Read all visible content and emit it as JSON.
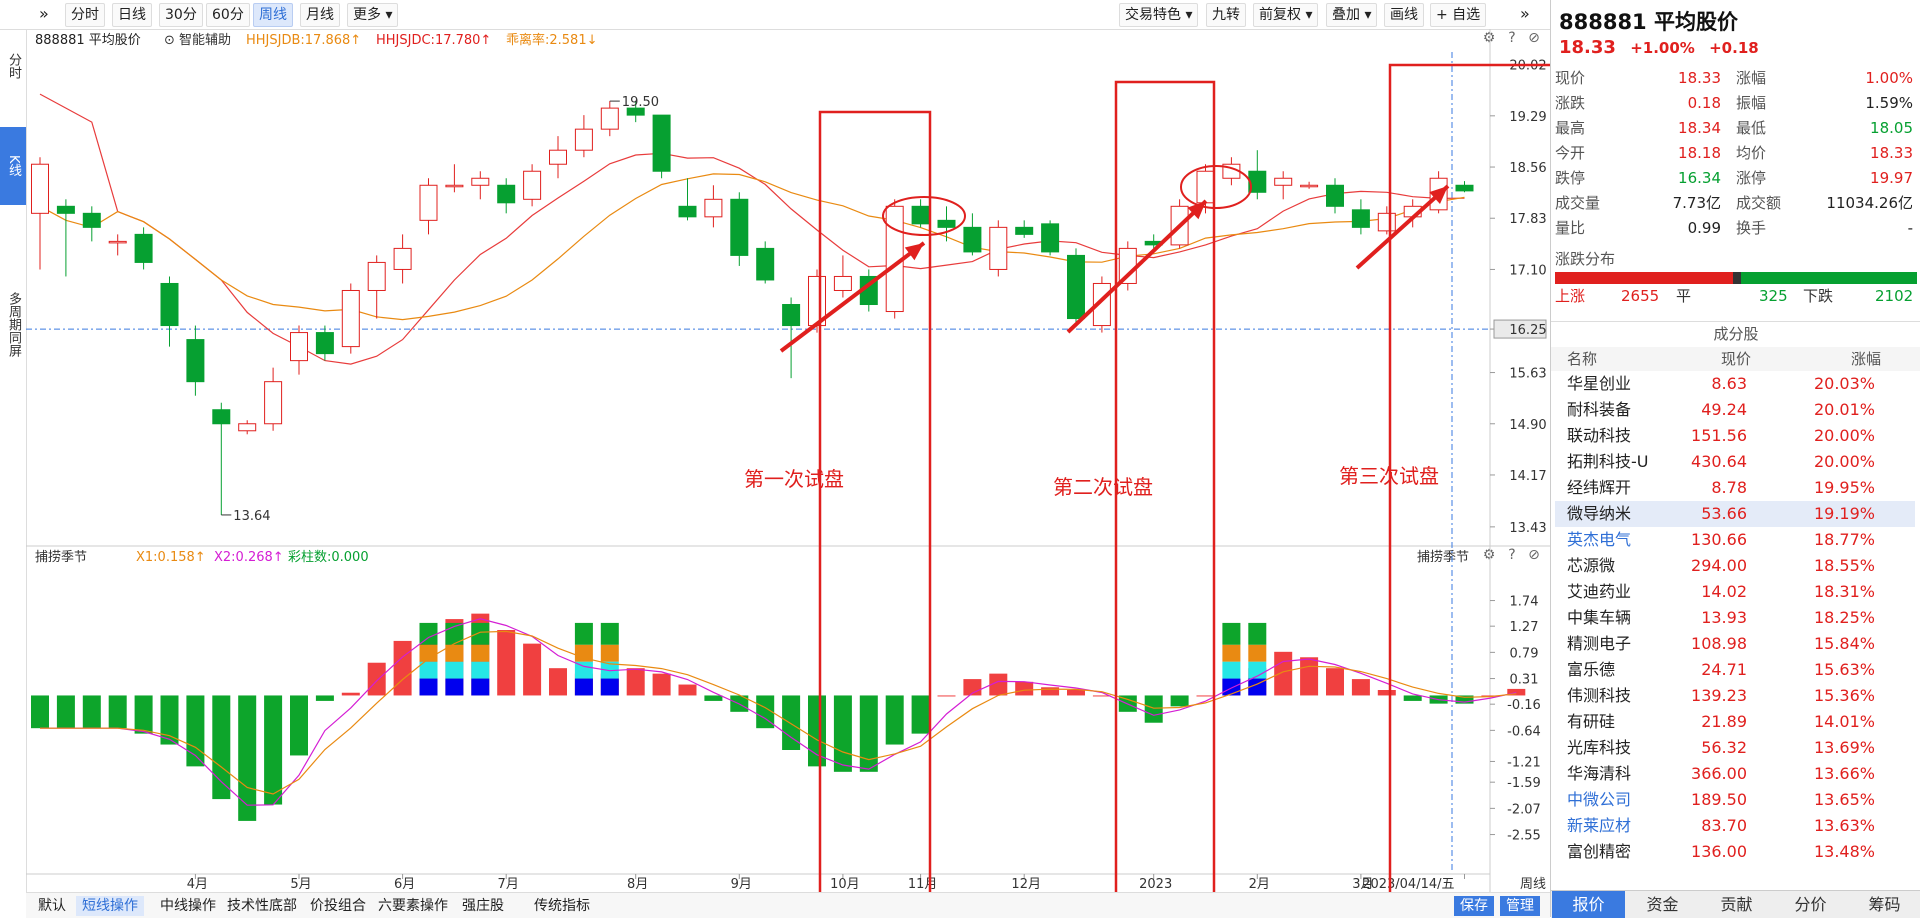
{
  "toolbar": {
    "expand_icon": "»",
    "left_buttons": [
      "分时",
      "日线",
      "30分",
      "60分",
      "周线",
      "月线",
      "更多 ▾"
    ],
    "active_index": 4,
    "right_buttons": [
      "交易特色 ▾",
      "九转",
      "前复权 ▾",
      "叠加 ▾",
      "画线",
      "+ 自选"
    ],
    "collapse_icon": "»"
  },
  "left_rail": {
    "tabs": [
      "分时",
      "K线",
      "多周期同屏"
    ],
    "active_index": 1
  },
  "main_title": {
    "stock": "888881 平均股价",
    "assist": "智能辅助",
    "hhjsjdb": "HHJSJDB:17.868↑",
    "hhjsjdc": "HHJSJDC:17.780↑",
    "deviation": "乖离率:2.581↓"
  },
  "indicator_title": {
    "name": "捕捞季节",
    "x1": "X1:0.158↑",
    "x2": "X2:0.268↑",
    "bars": "彩柱数:0.000",
    "right_name": "捕捞季节"
  },
  "bottom_tabs": {
    "items": [
      "默认",
      "短线操作",
      "中线操作",
      "技术性底部",
      "价投组合",
      "六要素操作",
      "强庄股",
      "传统指标"
    ],
    "active_index": 1,
    "save": "保存",
    "manage": "管理"
  },
  "period_label": "周线",
  "chart_data": [
    {
      "type": "candlestick",
      "ylim": [
        13.2,
        20.2
      ],
      "y_ticks": [
        20.02,
        19.29,
        18.56,
        17.83,
        17.1,
        16.25,
        15.63,
        14.9,
        14.17,
        13.43
      ],
      "x_ticks": [
        "4月",
        "5月",
        "6月",
        "7月",
        "8月",
        "9月",
        "10月",
        "11月",
        "12月",
        "2023",
        "2月",
        "3月",
        "2023/04/14/五"
      ],
      "reference_line": 16.25,
      "candles": [
        {
          "o": 17.9,
          "h": 18.7,
          "l": 17.1,
          "c": 18.6
        },
        {
          "o": 18.0,
          "h": 18.1,
          "l": 17.0,
          "c": 17.9
        },
        {
          "o": 17.9,
          "h": 18.0,
          "l": 17.5,
          "c": 17.7
        },
        {
          "o": 17.5,
          "h": 17.6,
          "l": 17.3,
          "c": 17.5
        },
        {
          "o": 17.6,
          "h": 17.7,
          "l": 17.1,
          "c": 17.2
        },
        {
          "o": 16.9,
          "h": 17.0,
          "l": 16.0,
          "c": 16.3
        },
        {
          "o": 16.1,
          "h": 16.3,
          "l": 15.3,
          "c": 15.5
        },
        {
          "o": 15.1,
          "h": 15.2,
          "l": 13.6,
          "c": 14.9
        },
        {
          "o": 14.8,
          "h": 14.95,
          "l": 14.75,
          "c": 14.9
        },
        {
          "o": 14.9,
          "h": 15.7,
          "l": 14.8,
          "c": 15.5
        },
        {
          "o": 15.8,
          "h": 16.3,
          "l": 15.6,
          "c": 16.2
        },
        {
          "o": 16.2,
          "h": 16.3,
          "l": 15.8,
          "c": 15.9
        },
        {
          "o": 16.0,
          "h": 16.9,
          "l": 15.9,
          "c": 16.8
        },
        {
          "o": 16.8,
          "h": 17.3,
          "l": 16.4,
          "c": 17.2
        },
        {
          "o": 17.1,
          "h": 17.6,
          "l": 16.9,
          "c": 17.4
        },
        {
          "o": 17.8,
          "h": 18.4,
          "l": 17.6,
          "c": 18.3
        },
        {
          "o": 18.3,
          "h": 18.6,
          "l": 18.2,
          "c": 18.3
        },
        {
          "o": 18.3,
          "h": 18.5,
          "l": 18.1,
          "c": 18.4
        },
        {
          "o": 18.3,
          "h": 18.4,
          "l": 17.9,
          "c": 18.05
        },
        {
          "o": 18.1,
          "h": 18.6,
          "l": 18.0,
          "c": 18.5
        },
        {
          "o": 18.6,
          "h": 19.0,
          "l": 18.4,
          "c": 18.8
        },
        {
          "o": 18.8,
          "h": 19.3,
          "l": 18.7,
          "c": 19.1
        },
        {
          "o": 19.1,
          "h": 19.5,
          "l": 19.0,
          "c": 19.4
        },
        {
          "o": 19.4,
          "h": 19.5,
          "l": 19.2,
          "c": 19.3
        },
        {
          "o": 19.3,
          "h": 19.3,
          "l": 18.4,
          "c": 18.5
        },
        {
          "o": 18.0,
          "h": 18.4,
          "l": 17.8,
          "c": 17.85
        },
        {
          "o": 17.85,
          "h": 18.3,
          "l": 17.7,
          "c": 18.1
        },
        {
          "o": 18.1,
          "h": 18.2,
          "l": 17.15,
          "c": 17.3
        },
        {
          "o": 17.4,
          "h": 17.5,
          "l": 16.9,
          "c": 16.95
        },
        {
          "o": 16.6,
          "h": 16.7,
          "l": 15.55,
          "c": 16.3
        },
        {
          "o": 16.3,
          "h": 17.1,
          "l": 16.2,
          "c": 17.0
        },
        {
          "o": 16.8,
          "h": 17.3,
          "l": 16.7,
          "c": 17.0
        },
        {
          "o": 17.0,
          "h": 17.1,
          "l": 16.5,
          "c": 16.6
        },
        {
          "o": 16.5,
          "h": 18.1,
          "l": 16.4,
          "c": 18.0
        },
        {
          "o": 18.0,
          "h": 18.1,
          "l": 17.7,
          "c": 17.75
        },
        {
          "o": 17.8,
          "h": 18.0,
          "l": 17.5,
          "c": 17.7
        },
        {
          "o": 17.7,
          "h": 17.9,
          "l": 17.3,
          "c": 17.35
        },
        {
          "o": 17.1,
          "h": 17.8,
          "l": 17.0,
          "c": 17.7
        },
        {
          "o": 17.7,
          "h": 17.8,
          "l": 17.55,
          "c": 17.6
        },
        {
          "o": 17.75,
          "h": 17.8,
          "l": 17.3,
          "c": 17.35
        },
        {
          "o": 17.3,
          "h": 17.4,
          "l": 16.3,
          "c": 16.4
        },
        {
          "o": 16.3,
          "h": 17.0,
          "l": 16.2,
          "c": 16.9
        },
        {
          "o": 16.9,
          "h": 17.5,
          "l": 16.8,
          "c": 17.4
        },
        {
          "o": 17.5,
          "h": 17.6,
          "l": 17.35,
          "c": 17.45
        },
        {
          "o": 17.45,
          "h": 18.1,
          "l": 17.4,
          "c": 18.0
        },
        {
          "o": 18.05,
          "h": 18.6,
          "l": 17.9,
          "c": 18.5
        },
        {
          "o": 18.4,
          "h": 18.7,
          "l": 18.3,
          "c": 18.6
        },
        {
          "o": 18.5,
          "h": 18.8,
          "l": 18.1,
          "c": 18.2
        },
        {
          "o": 18.3,
          "h": 18.5,
          "l": 18.1,
          "c": 18.4
        },
        {
          "o": 18.3,
          "h": 18.35,
          "l": 18.25,
          "c": 18.3
        },
        {
          "o": 18.3,
          "h": 18.4,
          "l": 17.9,
          "c": 18.0
        },
        {
          "o": 17.95,
          "h": 18.1,
          "l": 17.6,
          "c": 17.7
        },
        {
          "o": 17.65,
          "h": 18.0,
          "l": 17.6,
          "c": 17.9
        },
        {
          "o": 17.85,
          "h": 18.1,
          "l": 17.7,
          "c": 18.0
        },
        {
          "o": 17.95,
          "h": 18.5,
          "l": 17.9,
          "c": 18.4
        },
        {
          "o": 18.3,
          "h": 18.36,
          "l": 18.2,
          "c": 18.22
        }
      ],
      "label_high": "19.50",
      "label_low": "13.64",
      "annotations": [
        "第一次试盘",
        "第二次试盘",
        "第三次试盘"
      ]
    },
    {
      "type": "bar",
      "name": "捕捞季节",
      "ylim": [
        -3.2,
        2.3
      ],
      "y_ticks": [
        1.74,
        1.27,
        0.79,
        0.31,
        -0.16,
        -0.64,
        -1.21,
        -1.59,
        -2.07,
        -2.55
      ],
      "values": [
        -0.6,
        -0.6,
        -0.6,
        -0.6,
        -0.7,
        -0.9,
        -1.3,
        -1.9,
        -2.3,
        -2.0,
        -1.1,
        -0.1,
        0.05,
        0.6,
        1.0,
        1.3,
        1.4,
        1.5,
        1.2,
        0.95,
        0.5,
        0.4,
        0.4,
        0.5,
        0.4,
        0.2,
        -0.1,
        -0.3,
        -0.6,
        -1.0,
        -1.3,
        -1.4,
        -1.4,
        -0.9,
        -0.7,
        0.0,
        0.3,
        0.4,
        0.25,
        0.15,
        0.1,
        0.0,
        -0.3,
        -0.5,
        -0.2,
        0.0,
        0.3,
        0.5,
        0.8,
        0.7,
        0.5,
        0.3,
        0.1,
        -0.1,
        -0.15,
        -0.15,
        0.0,
        0.12
      ]
    }
  ],
  "right_panel": {
    "title": "888881 平均股价",
    "price": "18.33",
    "pct": "+1.00%",
    "chg": "+0.18",
    "quotes": [
      [
        "现价",
        "18.33",
        "涨幅",
        "1.00%"
      ],
      [
        "涨跌",
        "0.18",
        "振幅",
        "1.59%"
      ],
      [
        "最高",
        "18.34",
        "最低",
        "18.05"
      ],
      [
        "今开",
        "18.18",
        "均价",
        "18.33"
      ],
      [
        "跌停",
        "16.34",
        "涨停",
        "19.97"
      ],
      [
        "成交量",
        "7.73亿",
        "成交额",
        "11034.26亿"
      ],
      [
        "量比",
        "0.99",
        "换手",
        "-"
      ]
    ],
    "dist_label": "涨跌分布",
    "dist": {
      "up_label": "上涨",
      "up": "2655",
      "flat_label": "平",
      "flat": "325",
      "down_label": "下跌",
      "down": "2102"
    },
    "component_label": "成分股",
    "columns": [
      "名称",
      "现价",
      "涨幅"
    ],
    "stocks": [
      [
        "华星创业",
        "8.63",
        "20.03%"
      ],
      [
        "耐科装备",
        "49.24",
        "20.01%"
      ],
      [
        "联动科技",
        "151.56",
        "20.00%"
      ],
      [
        "拓荆科技-U",
        "430.64",
        "20.00%"
      ],
      [
        "经纬辉开",
        "8.78",
        "19.95%"
      ],
      [
        "微导纳米",
        "53.66",
        "19.19%"
      ],
      [
        "英杰电气",
        "130.66",
        "18.77%"
      ],
      [
        "芯源微",
        "294.00",
        "18.55%"
      ],
      [
        "艾迪药业",
        "14.02",
        "18.31%"
      ],
      [
        "中集车辆",
        "13.93",
        "18.25%"
      ],
      [
        "精测电子",
        "108.98",
        "15.84%"
      ],
      [
        "富乐德",
        "24.71",
        "15.63%"
      ],
      [
        "伟测科技",
        "139.23",
        "15.36%"
      ],
      [
        "有研硅",
        "21.89",
        "14.01%"
      ],
      [
        "光库科技",
        "56.32",
        "13.69%"
      ],
      [
        "华海清科",
        "366.00",
        "13.66%"
      ],
      [
        "中微公司",
        "189.50",
        "13.65%"
      ],
      [
        "新莱应材",
        "83.70",
        "13.63%"
      ],
      [
        "富创精密",
        "136.00",
        "13.48%"
      ]
    ],
    "selected_index": 5,
    "blue_indices": [
      6,
      16,
      17
    ],
    "tabs": [
      "报价",
      "资金",
      "贡献",
      "分价",
      "筹码"
    ],
    "active_tab": 0
  }
}
